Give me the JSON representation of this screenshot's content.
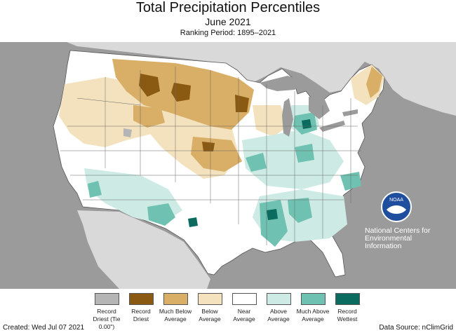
{
  "title": "Total Precipitation Percentiles",
  "subtitle": "June 2021",
  "ranking_period": "Ranking Period: 1895–2021",
  "colors": {
    "ocean": "#9b9b9b",
    "land_outside": "#d9d9d9",
    "record_driest_tie": "#b5b5b5",
    "record_driest": "#8b5a12",
    "much_below": "#d9ae66",
    "below": "#f3e2bd",
    "near": "#ffffff",
    "above": "#cdebe4",
    "much_above": "#6fc2b1",
    "record_wettest": "#0b6b5e"
  },
  "legend": [
    {
      "label": "Record Driest (Tie 0.00\")",
      "color": "#b5b5b5"
    },
    {
      "label": "Record Driest",
      "color": "#8b5a12"
    },
    {
      "label": "Much Below Average",
      "color": "#d9ae66"
    },
    {
      "label": "Below Average",
      "color": "#f3e2bd"
    },
    {
      "label": "Near Average",
      "color": "#ffffff"
    },
    {
      "label": "Above Average",
      "color": "#cdebe4"
    },
    {
      "label": "Much Above Average",
      "color": "#6fc2b1"
    },
    {
      "label": "Record Wettest",
      "color": "#0b6b5e"
    }
  ],
  "logo": {
    "name": "noaa-logo",
    "text": "NOAA"
  },
  "agency": "National Centers for Environmental Information",
  "footer": {
    "created": "Created: Wed Jul 07 2021",
    "source": "Data Source: nClimGrid"
  }
}
